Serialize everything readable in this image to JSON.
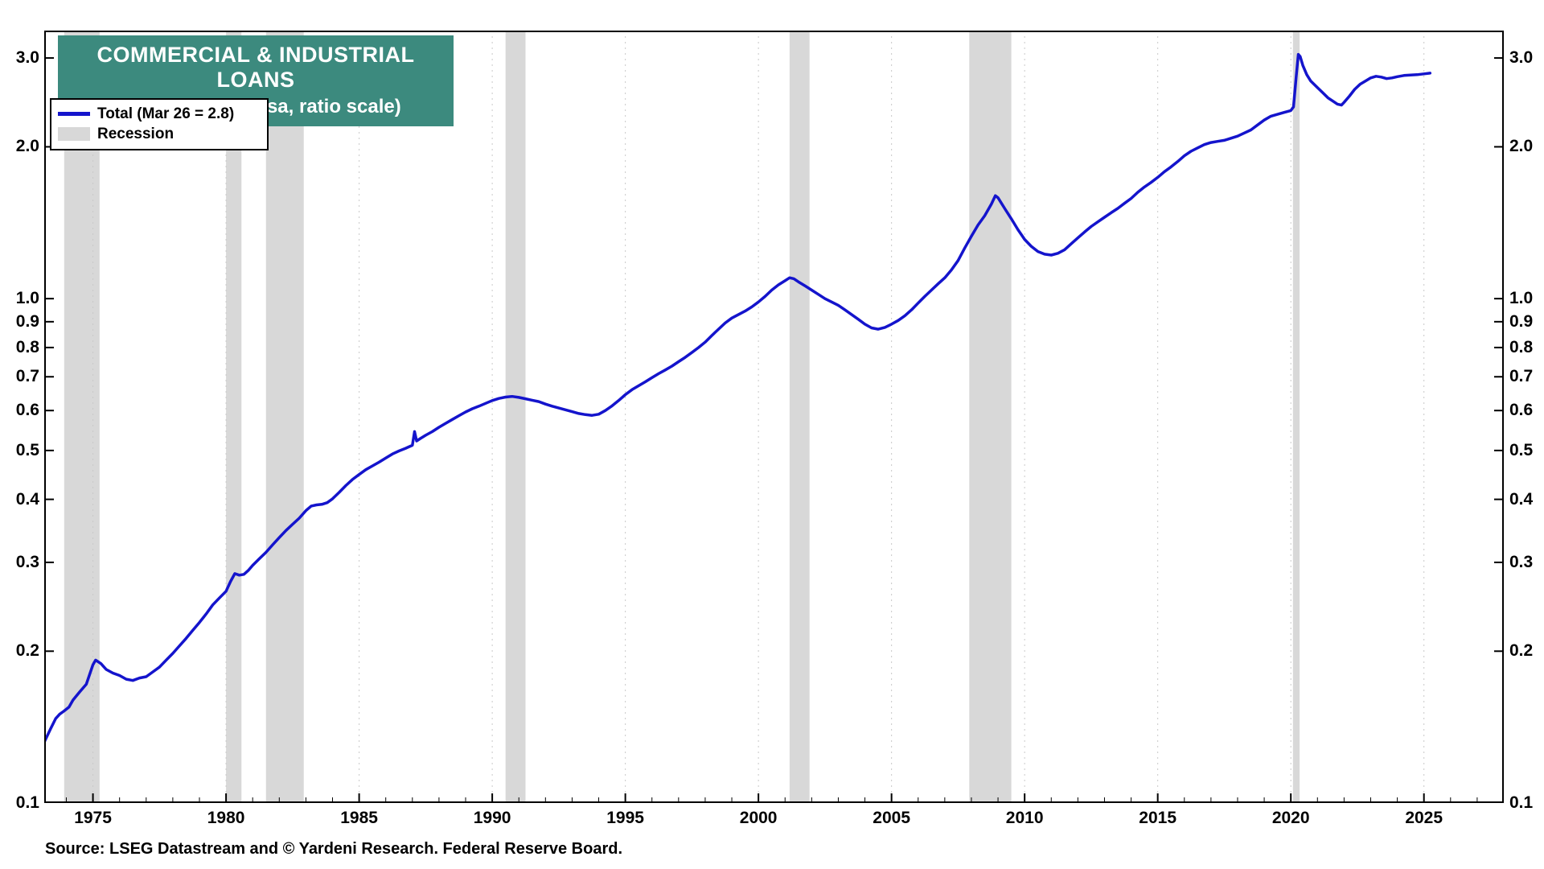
{
  "title": {
    "line1": "COMMERCIAL & INDUSTRIAL LOANS",
    "line2": "(trillion dollars, nsa, ratio scale)"
  },
  "legend": {
    "total_label": "Total (Mar 26 = 2.8)",
    "recession_label": "Recession"
  },
  "source": {
    "text": "Source: LSEG Datastream and © Yardeni Research. Federal Reserve Board."
  },
  "colors": {
    "line": "#1414cc",
    "recession": "#d8d8d8",
    "title_bg": "#3c8a7e",
    "axis": "#000000",
    "gridline": "#c9c9c9"
  },
  "chart_data": {
    "type": "line",
    "title": "COMMERCIAL & INDUSTRIAL LOANS (trillion dollars, nsa, ratio scale)",
    "xlabel": "",
    "ylabel": "trillion dollars",
    "y_scale": "log",
    "xlim": [
      1973.17,
      2028.0
    ],
    "ylim": [
      0.1,
      3.4
    ],
    "grid": "vertical-dotted",
    "legend_position": "top-left",
    "y_ticks": [
      {
        "v": 0.1,
        "label": "0.1"
      },
      {
        "v": 0.2,
        "label": "0.2"
      },
      {
        "v": 0.3,
        "label": "0.3"
      },
      {
        "v": 0.4,
        "label": "0.4"
      },
      {
        "v": 0.5,
        "label": "0.5"
      },
      {
        "v": 0.6,
        "label": "0.6"
      },
      {
        "v": 0.7,
        "label": "0.7"
      },
      {
        "v": 0.8,
        "label": "0.8"
      },
      {
        "v": 0.9,
        "label": "0.9"
      },
      {
        "v": 1.0,
        "label": "1.0"
      },
      {
        "v": 2.0,
        "label": "2.0"
      },
      {
        "v": 3.0,
        "label": "3.0"
      }
    ],
    "x_ticks": [
      1975,
      1980,
      1985,
      1990,
      1995,
      2000,
      2005,
      2010,
      2015,
      2020,
      2025
    ],
    "recession_bands": [
      [
        1973.92,
        1975.25
      ],
      [
        1980.0,
        1980.58
      ],
      [
        1981.5,
        1982.92
      ],
      [
        1990.5,
        1991.25
      ],
      [
        2001.17,
        2001.92
      ],
      [
        2007.92,
        2009.5
      ],
      [
        2020.08,
        2020.33
      ]
    ],
    "series": [
      {
        "name": "Total (Mar 26 = 2.8)",
        "points": [
          [
            1973.17,
            0.132
          ],
          [
            1973.4,
            0.14
          ],
          [
            1973.6,
            0.147
          ],
          [
            1973.75,
            0.15
          ],
          [
            1973.9,
            0.152
          ],
          [
            1974.1,
            0.155
          ],
          [
            1974.25,
            0.16
          ],
          [
            1974.5,
            0.166
          ],
          [
            1974.75,
            0.172
          ],
          [
            1975.0,
            0.188
          ],
          [
            1975.1,
            0.192
          ],
          [
            1975.3,
            0.189
          ],
          [
            1975.5,
            0.184
          ],
          [
            1975.75,
            0.181
          ],
          [
            1976.0,
            0.179
          ],
          [
            1976.25,
            0.176
          ],
          [
            1976.5,
            0.175
          ],
          [
            1976.75,
            0.177
          ],
          [
            1977.0,
            0.178
          ],
          [
            1977.25,
            0.182
          ],
          [
            1977.5,
            0.186
          ],
          [
            1977.75,
            0.192
          ],
          [
            1978.0,
            0.198
          ],
          [
            1978.25,
            0.205
          ],
          [
            1978.5,
            0.212
          ],
          [
            1978.75,
            0.22
          ],
          [
            1979.0,
            0.228
          ],
          [
            1979.25,
            0.237
          ],
          [
            1979.5,
            0.247
          ],
          [
            1979.75,
            0.255
          ],
          [
            1980.0,
            0.263
          ],
          [
            1980.17,
            0.275
          ],
          [
            1980.33,
            0.285
          ],
          [
            1980.5,
            0.283
          ],
          [
            1980.67,
            0.284
          ],
          [
            1980.83,
            0.289
          ],
          [
            1981.0,
            0.296
          ],
          [
            1981.25,
            0.305
          ],
          [
            1981.5,
            0.314
          ],
          [
            1981.75,
            0.325
          ],
          [
            1982.0,
            0.336
          ],
          [
            1982.25,
            0.347
          ],
          [
            1982.5,
            0.357
          ],
          [
            1982.75,
            0.367
          ],
          [
            1983.0,
            0.38
          ],
          [
            1983.2,
            0.388
          ],
          [
            1983.4,
            0.39
          ],
          [
            1983.6,
            0.391
          ],
          [
            1983.8,
            0.394
          ],
          [
            1984.0,
            0.401
          ],
          [
            1984.25,
            0.413
          ],
          [
            1984.5,
            0.426
          ],
          [
            1984.75,
            0.438
          ],
          [
            1985.0,
            0.448
          ],
          [
            1985.25,
            0.458
          ],
          [
            1985.5,
            0.466
          ],
          [
            1985.75,
            0.474
          ],
          [
            1986.0,
            0.483
          ],
          [
            1986.25,
            0.492
          ],
          [
            1986.5,
            0.499
          ],
          [
            1986.75,
            0.505
          ],
          [
            1987.0,
            0.512
          ],
          [
            1987.08,
            0.545
          ],
          [
            1987.16,
            0.522
          ],
          [
            1987.3,
            0.528
          ],
          [
            1987.5,
            0.536
          ],
          [
            1987.75,
            0.545
          ],
          [
            1988.0,
            0.556
          ],
          [
            1988.25,
            0.566
          ],
          [
            1988.5,
            0.576
          ],
          [
            1988.75,
            0.586
          ],
          [
            1989.0,
            0.596
          ],
          [
            1989.25,
            0.605
          ],
          [
            1989.5,
            0.612
          ],
          [
            1989.75,
            0.62
          ],
          [
            1990.0,
            0.628
          ],
          [
            1990.25,
            0.634
          ],
          [
            1990.5,
            0.638
          ],
          [
            1990.75,
            0.64
          ],
          [
            1991.0,
            0.637
          ],
          [
            1991.25,
            0.633
          ],
          [
            1991.5,
            0.629
          ],
          [
            1991.75,
            0.625
          ],
          [
            1992.0,
            0.618
          ],
          [
            1992.25,
            0.612
          ],
          [
            1992.5,
            0.607
          ],
          [
            1992.75,
            0.602
          ],
          [
            1993.0,
            0.597
          ],
          [
            1993.25,
            0.592
          ],
          [
            1993.5,
            0.589
          ],
          [
            1993.75,
            0.587
          ],
          [
            1994.0,
            0.59
          ],
          [
            1994.25,
            0.6
          ],
          [
            1994.5,
            0.613
          ],
          [
            1994.75,
            0.628
          ],
          [
            1995.0,
            0.645
          ],
          [
            1995.25,
            0.66
          ],
          [
            1995.5,
            0.672
          ],
          [
            1995.75,
            0.684
          ],
          [
            1996.0,
            0.697
          ],
          [
            1996.25,
            0.71
          ],
          [
            1996.5,
            0.722
          ],
          [
            1996.75,
            0.735
          ],
          [
            1997.0,
            0.75
          ],
          [
            1997.25,
            0.765
          ],
          [
            1997.5,
            0.782
          ],
          [
            1997.75,
            0.8
          ],
          [
            1998.0,
            0.82
          ],
          [
            1998.25,
            0.845
          ],
          [
            1998.5,
            0.87
          ],
          [
            1998.75,
            0.895
          ],
          [
            1999.0,
            0.915
          ],
          [
            1999.25,
            0.93
          ],
          [
            1999.5,
            0.945
          ],
          [
            1999.75,
            0.963
          ],
          [
            2000.0,
            0.985
          ],
          [
            2000.25,
            1.01
          ],
          [
            2000.5,
            1.04
          ],
          [
            2000.75,
            1.065
          ],
          [
            2001.0,
            1.085
          ],
          [
            2001.17,
            1.1
          ],
          [
            2001.33,
            1.095
          ],
          [
            2001.5,
            1.08
          ],
          [
            2001.75,
            1.06
          ],
          [
            2002.0,
            1.04
          ],
          [
            2002.25,
            1.02
          ],
          [
            2002.5,
            1.0
          ],
          [
            2002.75,
            0.985
          ],
          [
            2003.0,
            0.97
          ],
          [
            2003.25,
            0.95
          ],
          [
            2003.5,
            0.93
          ],
          [
            2003.75,
            0.91
          ],
          [
            2004.0,
            0.89
          ],
          [
            2004.25,
            0.875
          ],
          [
            2004.5,
            0.87
          ],
          [
            2004.75,
            0.877
          ],
          [
            2005.0,
            0.89
          ],
          [
            2005.25,
            0.905
          ],
          [
            2005.5,
            0.925
          ],
          [
            2005.75,
            0.95
          ],
          [
            2006.0,
            0.98
          ],
          [
            2006.25,
            1.01
          ],
          [
            2006.5,
            1.04
          ],
          [
            2006.75,
            1.07
          ],
          [
            2007.0,
            1.1
          ],
          [
            2007.25,
            1.14
          ],
          [
            2007.5,
            1.19
          ],
          [
            2007.75,
            1.26
          ],
          [
            2008.0,
            1.33
          ],
          [
            2008.25,
            1.4
          ],
          [
            2008.5,
            1.46
          ],
          [
            2008.75,
            1.54
          ],
          [
            2008.9,
            1.6
          ],
          [
            2009.0,
            1.585
          ],
          [
            2009.25,
            1.51
          ],
          [
            2009.5,
            1.44
          ],
          [
            2009.75,
            1.37
          ],
          [
            2010.0,
            1.31
          ],
          [
            2010.25,
            1.27
          ],
          [
            2010.5,
            1.24
          ],
          [
            2010.75,
            1.225
          ],
          [
            2011.0,
            1.22
          ],
          [
            2011.25,
            1.23
          ],
          [
            2011.5,
            1.25
          ],
          [
            2011.75,
            1.285
          ],
          [
            2012.0,
            1.32
          ],
          [
            2012.25,
            1.355
          ],
          [
            2012.5,
            1.39
          ],
          [
            2012.75,
            1.42
          ],
          [
            2013.0,
            1.45
          ],
          [
            2013.25,
            1.48
          ],
          [
            2013.5,
            1.51
          ],
          [
            2013.75,
            1.545
          ],
          [
            2014.0,
            1.58
          ],
          [
            2014.25,
            1.625
          ],
          [
            2014.5,
            1.665
          ],
          [
            2014.75,
            1.7
          ],
          [
            2015.0,
            1.74
          ],
          [
            2015.25,
            1.785
          ],
          [
            2015.5,
            1.825
          ],
          [
            2015.75,
            1.87
          ],
          [
            2016.0,
            1.92
          ],
          [
            2016.25,
            1.96
          ],
          [
            2016.5,
            1.99
          ],
          [
            2016.75,
            2.02
          ],
          [
            2017.0,
            2.04
          ],
          [
            2017.25,
            2.05
          ],
          [
            2017.5,
            2.06
          ],
          [
            2017.75,
            2.08
          ],
          [
            2018.0,
            2.1
          ],
          [
            2018.25,
            2.13
          ],
          [
            2018.5,
            2.16
          ],
          [
            2018.75,
            2.21
          ],
          [
            2019.0,
            2.26
          ],
          [
            2019.25,
            2.3
          ],
          [
            2019.5,
            2.32
          ],
          [
            2019.75,
            2.34
          ],
          [
            2020.0,
            2.36
          ],
          [
            2020.1,
            2.4
          ],
          [
            2020.2,
            2.75
          ],
          [
            2020.28,
            3.05
          ],
          [
            2020.35,
            3.02
          ],
          [
            2020.45,
            2.9
          ],
          [
            2020.6,
            2.78
          ],
          [
            2020.75,
            2.7
          ],
          [
            2021.0,
            2.62
          ],
          [
            2021.2,
            2.56
          ],
          [
            2021.4,
            2.5
          ],
          [
            2021.6,
            2.46
          ],
          [
            2021.75,
            2.43
          ],
          [
            2021.9,
            2.42
          ],
          [
            2022.0,
            2.45
          ],
          [
            2022.2,
            2.52
          ],
          [
            2022.4,
            2.6
          ],
          [
            2022.6,
            2.66
          ],
          [
            2022.8,
            2.7
          ],
          [
            2023.0,
            2.74
          ],
          [
            2023.2,
            2.76
          ],
          [
            2023.4,
            2.75
          ],
          [
            2023.6,
            2.73
          ],
          [
            2023.8,
            2.74
          ],
          [
            2024.0,
            2.755
          ],
          [
            2024.25,
            2.77
          ],
          [
            2024.5,
            2.775
          ],
          [
            2024.75,
            2.78
          ],
          [
            2025.0,
            2.79
          ],
          [
            2025.23,
            2.8
          ]
        ]
      }
    ]
  }
}
